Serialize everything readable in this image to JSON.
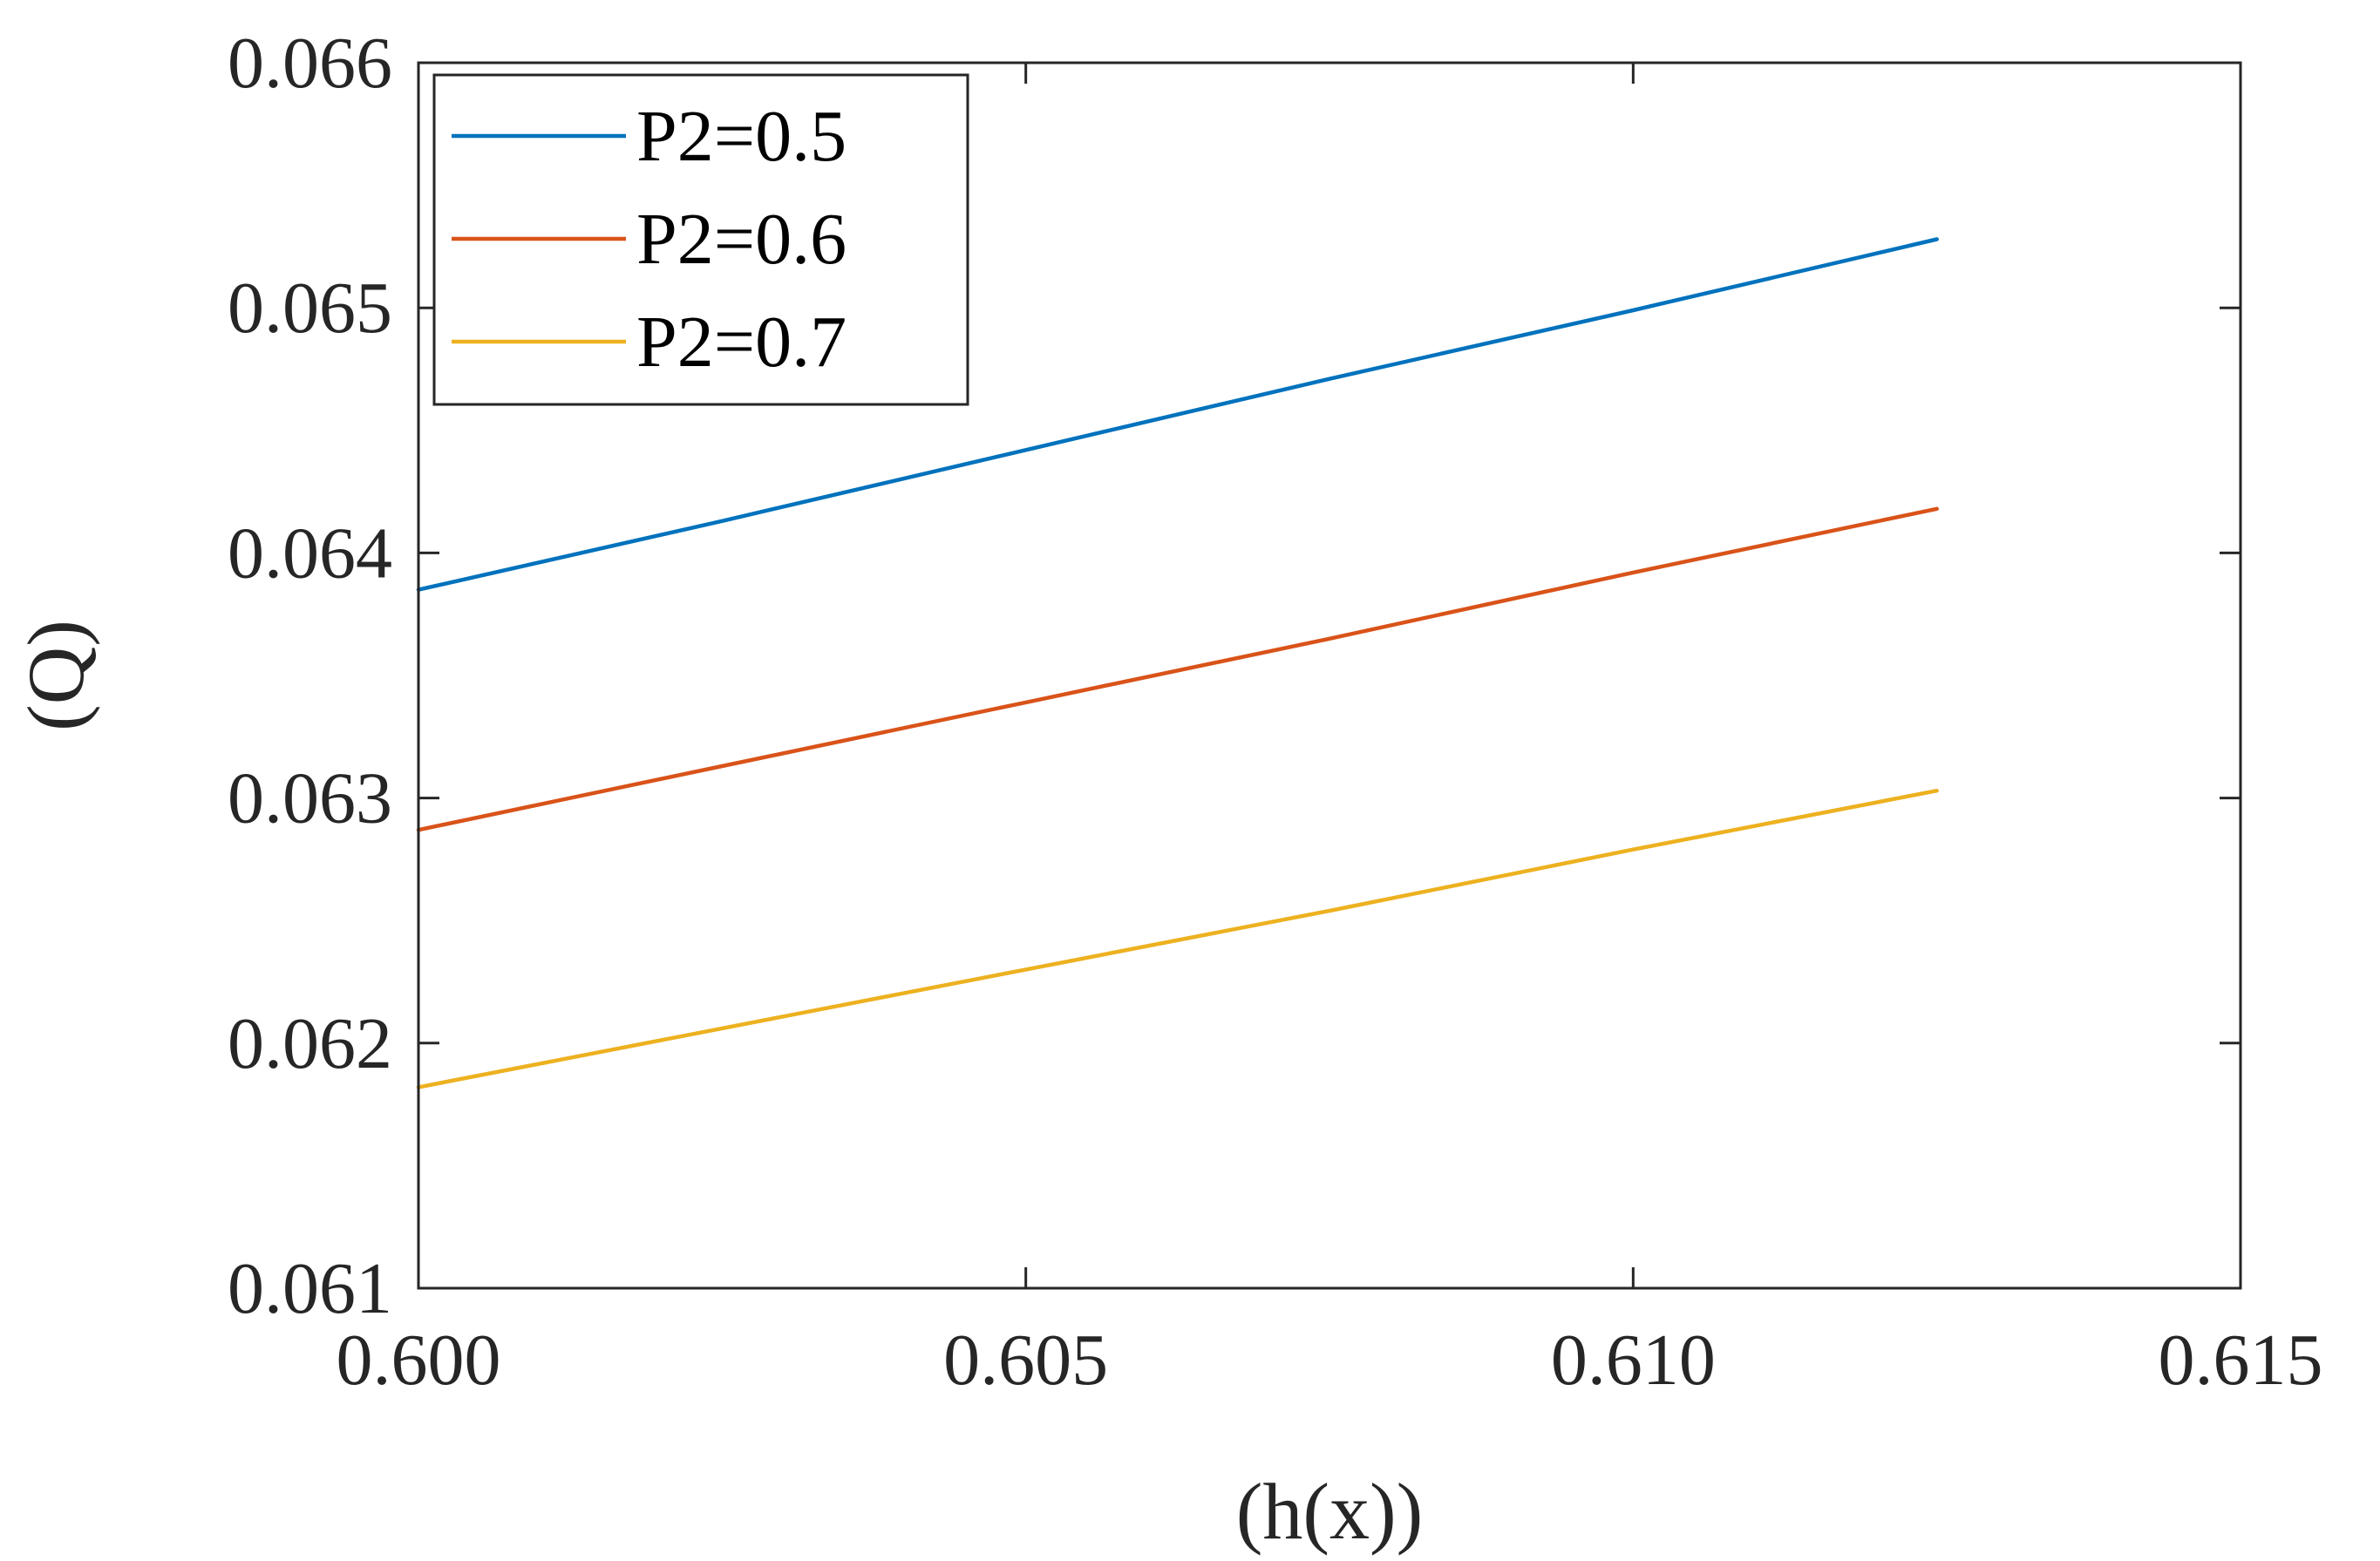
{
  "chart_data": {
    "type": "line",
    "title": "",
    "xlabel": "(h(x))",
    "ylabel": "(Q)",
    "xlim": [
      0.6,
      0.615
    ],
    "ylim": [
      0.061,
      0.066
    ],
    "xticks": [
      0.6,
      0.605,
      0.61,
      0.615
    ],
    "xtick_labels": [
      "0.600",
      "0.605",
      "0.610",
      "0.615"
    ],
    "yticks": [
      0.061,
      0.062,
      0.063,
      0.064,
      0.065,
      0.066
    ],
    "ytick_labels": [
      "0.061",
      "0.062",
      "0.063",
      "0.064",
      "0.065",
      "0.066"
    ],
    "grid": false,
    "legend_position": "top-left",
    "series": [
      {
        "name": "P2=0.5",
        "color": "#0072BD",
        "x": [
          0.6,
          0.6025,
          0.605,
          0.6075,
          0.61,
          0.6125
        ],
        "y": [
          0.06385,
          0.06413,
          0.06442,
          0.06471,
          0.06499,
          0.06528
        ]
      },
      {
        "name": "P2=0.6",
        "color": "#D95319",
        "x": [
          0.6,
          0.6025,
          0.605,
          0.6075,
          0.61,
          0.6125
        ],
        "y": [
          0.06287,
          0.06313,
          0.06339,
          0.06365,
          0.06392,
          0.06418
        ]
      },
      {
        "name": "P2=0.7",
        "color": "#EDB120",
        "x": [
          0.6,
          0.6025,
          0.605,
          0.6075,
          0.61,
          0.6125
        ],
        "y": [
          0.06182,
          0.06206,
          0.0623,
          0.06254,
          0.06279,
          0.06303
        ]
      }
    ]
  }
}
